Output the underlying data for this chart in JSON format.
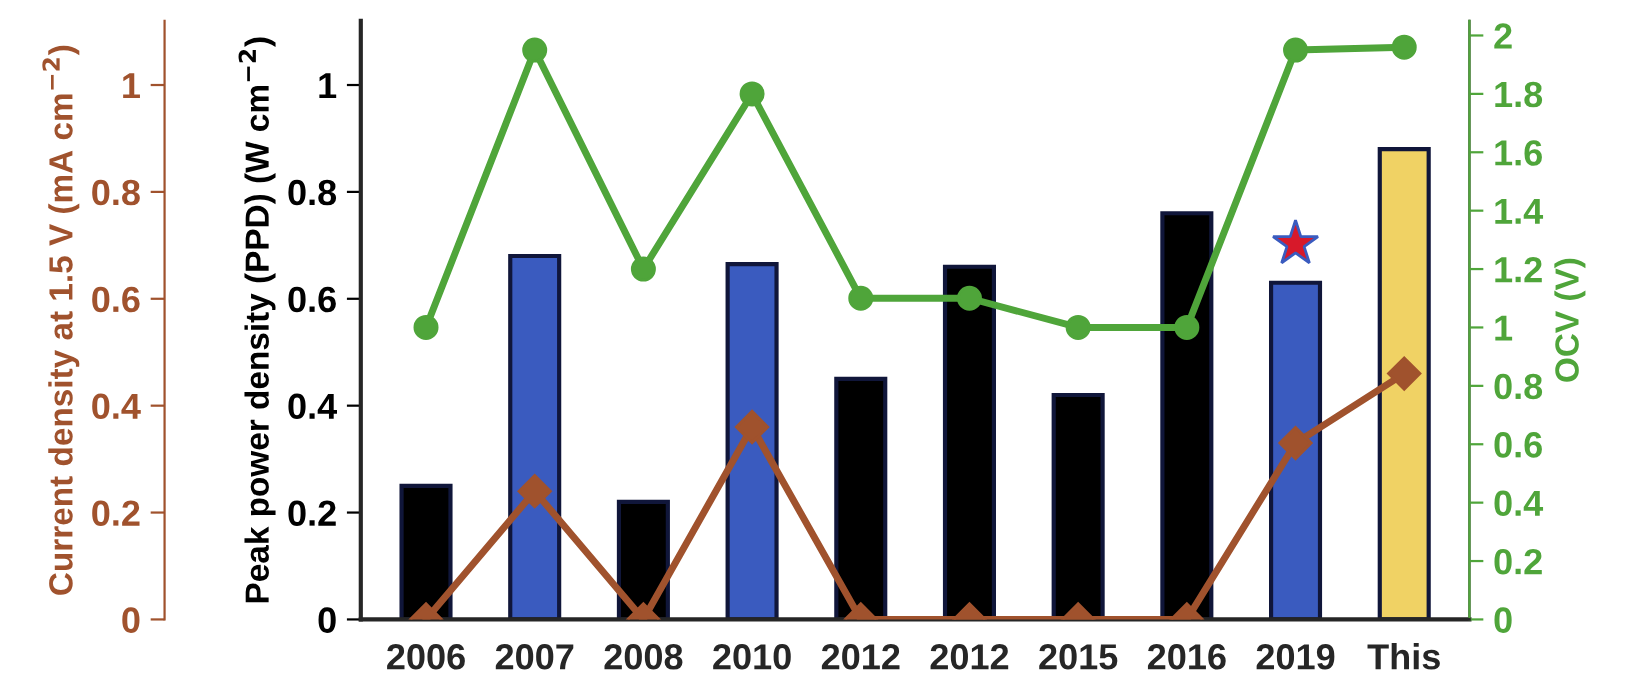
{
  "chart_data": {
    "type": "bar",
    "categories": [
      "2006",
      "2007",
      "2008",
      "2010",
      "2012",
      "2012",
      "2015",
      "2016",
      "2019",
      "This"
    ],
    "ylabel": "Peak power density (PPD) (W cm$^{−2}$)",
    "y2label": "OCV (V)",
    "y3label": "Current density at 1.5 V (mA cm$^{−2}$)",
    "ylim": [
      0,
      1.12
    ],
    "yticks": [
      0,
      0.2,
      0.4,
      0.6,
      0.8,
      1
    ],
    "y2lim": [
      0,
      2.05
    ],
    "y2ticks": [
      0,
      0.2,
      0.4,
      0.6,
      0.8,
      1,
      1.2,
      1.4,
      1.6,
      1.8,
      2
    ],
    "y3lim": [
      0,
      1.12
    ],
    "y3ticks": [
      0,
      0.2,
      0.4,
      0.6,
      0.8,
      1
    ],
    "grid": false,
    "legend": false,
    "series": [
      {
        "values": [
          0.25,
          0.68,
          0.22,
          0.665,
          0.45,
          0.66,
          0.42,
          0.76,
          0.63,
          0.88
        ],
        "colors": [
          "#000000",
          "#3a5bbf",
          "#000000",
          "#3a5bbf",
          "#000000",
          "#000000",
          "#000000",
          "#000000",
          "#3a5bbf",
          "#f0d264"
        ]
      },
      {
        "type": "line",
        "axis": "y2",
        "color": "#4fa53a",
        "marker": "circle",
        "values": [
          1.0,
          1.95,
          1.2,
          1.8,
          1.1,
          1.1,
          1.0,
          1.0,
          1.95,
          1.96
        ]
      },
      {
        "type": "line",
        "axis": "y3",
        "color": "#a0522d",
        "marker": "diamond",
        "values": [
          0,
          0.24,
          0,
          0.36,
          0,
          0,
          0,
          0,
          0.33,
          0.46
        ]
      }
    ]
  }
}
